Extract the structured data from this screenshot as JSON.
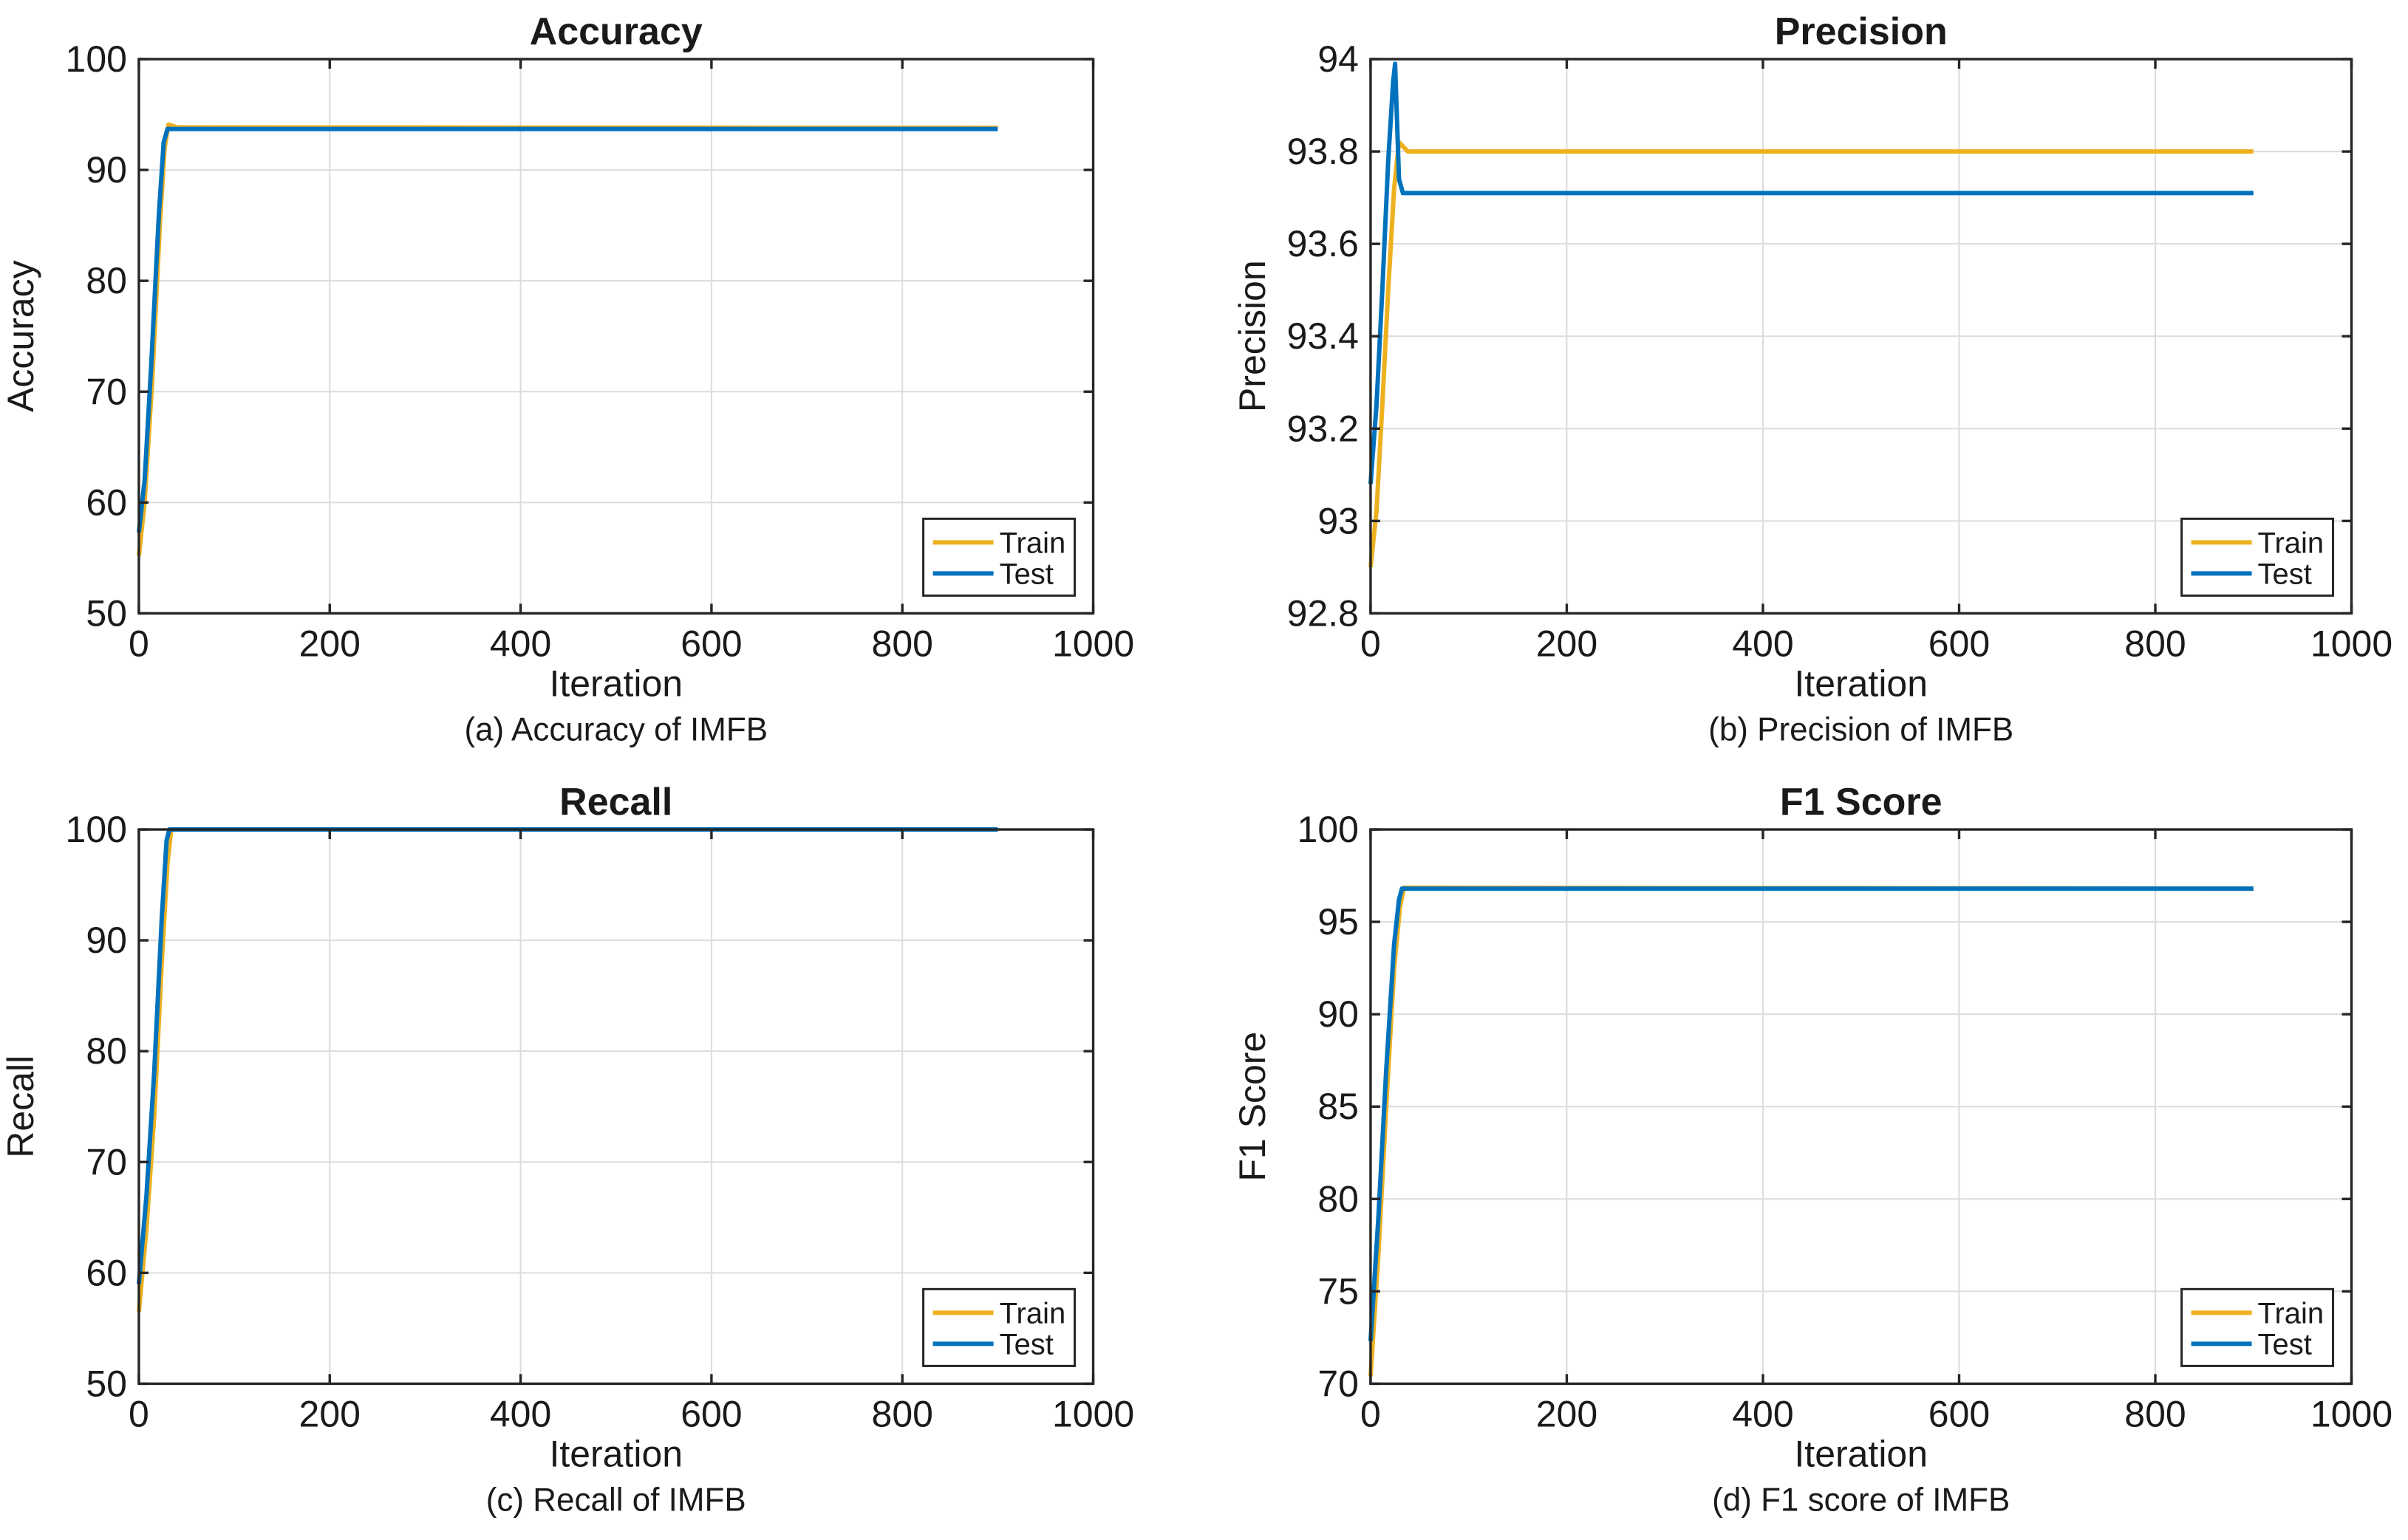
{
  "figure": {
    "background": "#ffffff",
    "text_color": "#1a1a1a",
    "axis_color": "#262626",
    "grid_color": "#dcdcdc",
    "legend": {
      "position": "bottom-right",
      "items": [
        {
          "label": "Train",
          "color": "#EDB120"
        },
        {
          "label": "Test",
          "color": "#0072BD"
        }
      ]
    }
  },
  "chart_data": [
    {
      "type": "line",
      "title": "Accuracy",
      "xlabel": "Iteration",
      "ylabel": "Accuracy",
      "caption": "(a) Accuracy of IMFB",
      "xlim": [
        0,
        1000
      ],
      "ylim": [
        50,
        100
      ],
      "xticks": [
        0,
        200,
        400,
        600,
        800,
        1000
      ],
      "xtick_labels": [
        "0",
        "200",
        "400",
        "600",
        "800",
        "1000"
      ],
      "yticks": [
        50,
        60,
        70,
        80,
        90,
        100
      ],
      "ytick_labels": [
        "50",
        "60",
        "70",
        "80",
        "90",
        "100"
      ],
      "grid": true,
      "legend_position": "bottom-right",
      "series": [
        {
          "name": "Train",
          "color": "#EDB120",
          "points": [
            [
              0,
              55.2
            ],
            [
              6,
              60
            ],
            [
              14,
              71
            ],
            [
              22,
              85
            ],
            [
              27,
              92
            ],
            [
              31,
              94.1
            ],
            [
              40,
              93.85
            ],
            [
              900,
              93.8
            ]
          ]
        },
        {
          "name": "Test",
          "color": "#0072BD",
          "points": [
            [
              0,
              57.3
            ],
            [
              6,
              62
            ],
            [
              13,
              72.5
            ],
            [
              21,
              86
            ],
            [
              26,
              92.5
            ],
            [
              30,
              93.7
            ],
            [
              900,
              93.7
            ]
          ]
        }
      ]
    },
    {
      "type": "line",
      "title": "Precision",
      "xlabel": "Iteration",
      "ylabel": "Precision",
      "caption": "(b) Precision of IMFB",
      "xlim": [
        0,
        1000
      ],
      "ylim": [
        92.8,
        94
      ],
      "xticks": [
        0,
        200,
        400,
        600,
        800,
        1000
      ],
      "xtick_labels": [
        "0",
        "200",
        "400",
        "600",
        "800",
        "1000"
      ],
      "yticks": [
        92.8,
        93,
        93.2,
        93.4,
        93.6,
        93.8,
        94
      ],
      "ytick_labels": [
        "92.8",
        "93",
        "93.2",
        "93.4",
        "93.6",
        "93.8",
        "94"
      ],
      "grid": true,
      "legend_position": "bottom-right",
      "series": [
        {
          "name": "Train",
          "color": "#EDB120",
          "points": [
            [
              0,
              92.9
            ],
            [
              6,
              93.02
            ],
            [
              12,
              93.25
            ],
            [
              18,
              93.5
            ],
            [
              24,
              93.72
            ],
            [
              29,
              93.82
            ],
            [
              38,
              93.8
            ],
            [
              900,
              93.8
            ]
          ]
        },
        {
          "name": "Test",
          "color": "#0072BD",
          "points": [
            [
              0,
              93.08
            ],
            [
              6,
              93.25
            ],
            [
              12,
              93.5
            ],
            [
              18,
              93.78
            ],
            [
              23,
              93.95
            ],
            [
              25,
              93.99
            ],
            [
              29,
              93.74
            ],
            [
              33,
              93.71
            ],
            [
              900,
              93.71
            ]
          ]
        }
      ]
    },
    {
      "type": "line",
      "title": "Recall",
      "xlabel": "Iteration",
      "ylabel": "Recall",
      "caption": "(c) Recall of IMFB",
      "xlim": [
        0,
        1000
      ],
      "ylim": [
        50,
        100
      ],
      "xticks": [
        0,
        200,
        400,
        600,
        800,
        1000
      ],
      "xtick_labels": [
        "0",
        "200",
        "400",
        "600",
        "800",
        "1000"
      ],
      "yticks": [
        50,
        60,
        70,
        80,
        90,
        100
      ],
      "ytick_labels": [
        "50",
        "60",
        "70",
        "80",
        "90",
        "100"
      ],
      "grid": true,
      "legend_position": "bottom-right",
      "series": [
        {
          "name": "Train",
          "color": "#EDB120",
          "points": [
            [
              0,
              56.5
            ],
            [
              8,
              64
            ],
            [
              16,
              74
            ],
            [
              24,
              88
            ],
            [
              30,
              97
            ],
            [
              34,
              100
            ],
            [
              900,
              100
            ]
          ]
        },
        {
          "name": "Test",
          "color": "#0072BD",
          "points": [
            [
              0,
              59
            ],
            [
              8,
              67
            ],
            [
              16,
              78
            ],
            [
              24,
              92
            ],
            [
              29,
              99
            ],
            [
              32,
              100
            ],
            [
              900,
              100
            ]
          ]
        }
      ]
    },
    {
      "type": "line",
      "title": "F1 Score",
      "xlabel": "Iteration",
      "ylabel": "F1 Score",
      "caption": "(d) F1 score of IMFB",
      "xlim": [
        0,
        1000
      ],
      "ylim": [
        70,
        100
      ],
      "xticks": [
        0,
        200,
        400,
        600,
        800,
        1000
      ],
      "xtick_labels": [
        "0",
        "200",
        "400",
        "600",
        "800",
        "1000"
      ],
      "yticks": [
        70,
        75,
        80,
        85,
        90,
        95,
        100
      ],
      "ytick_labels": [
        "70",
        "75",
        "80",
        "85",
        "90",
        "95",
        "100"
      ],
      "grid": true,
      "legend_position": "bottom-right",
      "series": [
        {
          "name": "Train",
          "color": "#EDB120",
          "points": [
            [
              0,
              70.4
            ],
            [
              8,
              77
            ],
            [
              16,
              85
            ],
            [
              24,
              92.5
            ],
            [
              30,
              95.8
            ],
            [
              34,
              96.85
            ],
            [
              900,
              96.8
            ]
          ]
        },
        {
          "name": "Test",
          "color": "#0072BD",
          "points": [
            [
              0,
              72.3
            ],
            [
              8,
              79
            ],
            [
              16,
              87
            ],
            [
              24,
              93.8
            ],
            [
              29,
              96.2
            ],
            [
              32,
              96.8
            ],
            [
              900,
              96.8
            ]
          ]
        }
      ]
    }
  ]
}
